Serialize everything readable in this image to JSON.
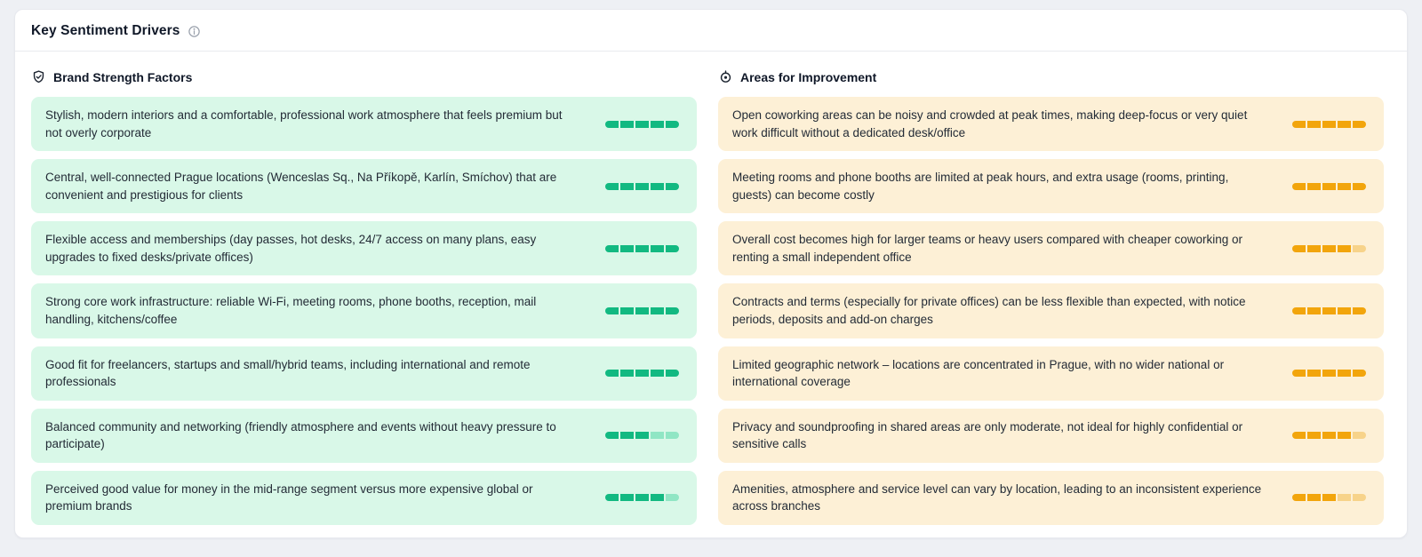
{
  "panel": {
    "title": "Key Sentiment Drivers"
  },
  "bar": {
    "segments": 5
  },
  "columns": [
    {
      "id": "brand-strengths",
      "title": "Brand Strength Factors",
      "icon": "shield-check-icon",
      "card_bg": "#d9f8e8",
      "bar_filled": "#12b981",
      "bar_empty": "#90e6c4",
      "items": [
        {
          "text": "Stylish, modern interiors and a comfortable, professional work atmosphere that feels premium but not overly corporate",
          "score": 5
        },
        {
          "text": "Central, well-connected Prague locations (Wenceslas Sq., Na Příkopě, Karlín, Smíchov) that are convenient and prestigious for clients",
          "score": 5
        },
        {
          "text": "Flexible access and memberships (day passes, hot desks, 24/7 access on many plans, easy upgrades to fixed desks/private offices)",
          "score": 5
        },
        {
          "text": "Strong core work infrastructure: reliable Wi-Fi, meeting rooms, phone booths, reception, mail handling, kitchens/coffee",
          "score": 5
        },
        {
          "text": "Good fit for freelancers, startups and small/hybrid teams, including international and remote professionals",
          "score": 5
        },
        {
          "text": "Balanced community and networking (friendly atmosphere and events without heavy pressure to participate)",
          "score": 3
        },
        {
          "text": "Perceived good value for money in the mid-range segment versus more expensive global or premium brands",
          "score": 4
        }
      ]
    },
    {
      "id": "areas-improvement",
      "title": "Areas for Improvement",
      "icon": "location-target-icon",
      "card_bg": "#fdf0d6",
      "bar_filled": "#f2a50c",
      "bar_empty": "#f7d38a",
      "items": [
        {
          "text": "Open coworking areas can be noisy and crowded at peak times, making deep-focus or very quiet work difficult without a dedicated desk/office",
          "score": 5
        },
        {
          "text": "Meeting rooms and phone booths are limited at peak hours, and extra usage (rooms, printing, guests) can become costly",
          "score": 5
        },
        {
          "text": "Overall cost becomes high for larger teams or heavy users compared with cheaper coworking or renting a small independent office",
          "score": 4
        },
        {
          "text": "Contracts and terms (especially for private offices) can be less flexible than expected, with notice periods, deposits and add-on charges",
          "score": 5
        },
        {
          "text": "Limited geographic network – locations are concentrated in Prague, with no wider national or international coverage",
          "score": 5
        },
        {
          "text": "Privacy and soundproofing in shared areas are only moderate, not ideal for highly confidential or sensitive calls",
          "score": 4
        },
        {
          "text": "Amenities, atmosphere and service level can vary by location, leading to an inconsistent experience across branches",
          "score": 3
        }
      ]
    }
  ]
}
